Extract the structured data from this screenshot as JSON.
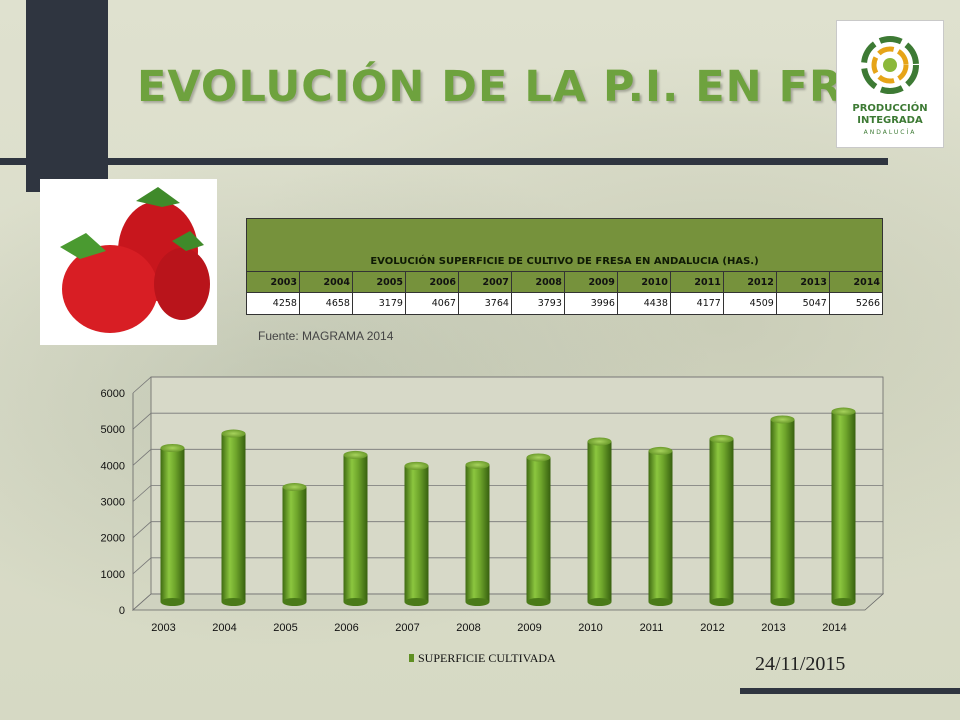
{
  "title": "EVOLUCIÓN DE LA P.I. EN FRESA",
  "logo": {
    "line1": "PRODUCCIÓN",
    "line2": "INTEGRADA",
    "line3": "ANDALUCÍA",
    "icon": "produccion-integrada-logo-icon"
  },
  "strawberry_image": {
    "icon": "strawberries-photo"
  },
  "table": {
    "caption": "EVOLUCIÓN SUPERFICIE DE CULTIVO DE FRESA EN ANDALUCIA (HAS.)",
    "years": [
      "2003",
      "2004",
      "2005",
      "2006",
      "2007",
      "2008",
      "2009",
      "2010",
      "2011",
      "2012",
      "2013",
      "2014"
    ],
    "values": [
      "4258",
      "4658",
      "3179",
      "4067",
      "3764",
      "3793",
      "3996",
      "4438",
      "4177",
      "4509",
      "5047",
      "5266"
    ]
  },
  "source": "Fuente: MAGRAMA 2014",
  "date": "24/11/2015",
  "colors": {
    "title": "#6ea23e",
    "bar": "#5f8f22",
    "header": "#76923c"
  },
  "chart_data": {
    "type": "bar",
    "categories": [
      "2003",
      "2004",
      "2005",
      "2006",
      "2007",
      "2008",
      "2009",
      "2010",
      "2011",
      "2012",
      "2013",
      "2014"
    ],
    "series": [
      {
        "name": "SUPERFICIE CULTIVADA",
        "values": [
          4258,
          4658,
          3179,
          4067,
          3764,
          3793,
          3996,
          4438,
          4177,
          4509,
          5047,
          5266
        ]
      }
    ],
    "yticks": [
      "0",
      "1000",
      "2000",
      "3000",
      "4000",
      "5000",
      "6000"
    ],
    "ylim": [
      0,
      6000
    ],
    "grid": true,
    "legend": "bottom",
    "style": "3d-cylinder"
  }
}
